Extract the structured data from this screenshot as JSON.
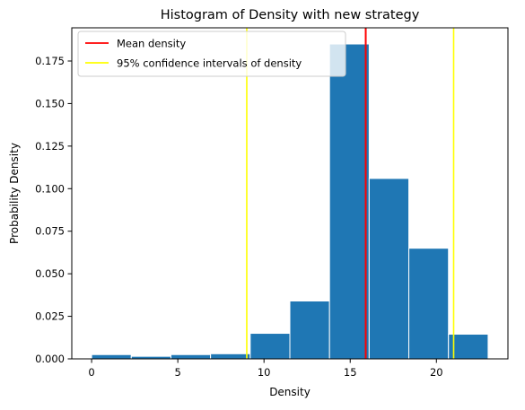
{
  "chart_data": {
    "type": "bar",
    "title": "Histogram of Density with new strategy",
    "xlabel": "Density",
    "ylabel": "Probability Density",
    "xlim": [
      -1.15,
      24.15
    ],
    "ylim": [
      0,
      0.1945
    ],
    "xticks": [
      0,
      5,
      10,
      15,
      20
    ],
    "yticks": [
      0.0,
      0.025,
      0.05,
      0.075,
      0.1,
      0.125,
      0.15,
      0.175
    ],
    "ytick_labels": [
      "0.000",
      "0.025",
      "0.050",
      "0.075",
      "0.100",
      "0.125",
      "0.150",
      "0.175"
    ],
    "bins": [
      {
        "x0": 0.0,
        "x1": 2.3,
        "value": 0.0025
      },
      {
        "x0": 2.3,
        "x1": 4.6,
        "value": 0.0015
      },
      {
        "x0": 4.6,
        "x1": 6.9,
        "value": 0.0025
      },
      {
        "x0": 6.9,
        "x1": 9.2,
        "value": 0.003
      },
      {
        "x0": 9.2,
        "x1": 11.5,
        "value": 0.015
      },
      {
        "x0": 11.5,
        "x1": 13.8,
        "value": 0.034
      },
      {
        "x0": 13.8,
        "x1": 16.1,
        "value": 0.185
      },
      {
        "x0": 16.1,
        "x1": 18.4,
        "value": 0.106
      },
      {
        "x0": 18.4,
        "x1": 20.7,
        "value": 0.065
      },
      {
        "x0": 20.7,
        "x1": 23.0,
        "value": 0.0145
      }
    ],
    "lines": [
      {
        "name": "Mean density",
        "x": 15.9,
        "color": "#ff0000"
      },
      {
        "name": "95% confidence intervals of density",
        "x": 9.0,
        "color": "#ffff00"
      },
      {
        "name": "95% confidence intervals of density",
        "x": 21.0,
        "color": "#ffff00"
      }
    ],
    "legend": [
      {
        "label": "Mean density",
        "color": "#ff0000"
      },
      {
        "label": "95% confidence intervals of density",
        "color": "#ffff00"
      }
    ],
    "legend_position": "upper-left",
    "bar_color": "#1f77b4",
    "bar_edge_color": "#ffffff",
    "grid": false
  }
}
